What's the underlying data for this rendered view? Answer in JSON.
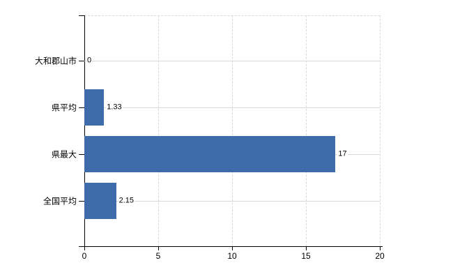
{
  "chart_data": {
    "type": "bar",
    "orientation": "horizontal",
    "title": "",
    "categories": [
      "大和郡山市",
      "県平均",
      "県最大",
      "全国平均"
    ],
    "values": [
      0,
      1.33,
      17,
      2.15
    ],
    "value_labels": [
      "0",
      "1.33",
      "17",
      "2.15"
    ],
    "x_ticks": [
      0,
      5,
      10,
      15,
      20
    ],
    "x_tick_labels": [
      "0",
      "5",
      "10",
      "15",
      "20"
    ],
    "xlim": [
      0,
      20
    ],
    "grid": "on",
    "legend": "none",
    "colors": {
      "bar": "#3e6cab",
      "gridline": "#d9d9d9",
      "axis": "#000000",
      "text": "#000000",
      "background": "#ffffff"
    }
  }
}
